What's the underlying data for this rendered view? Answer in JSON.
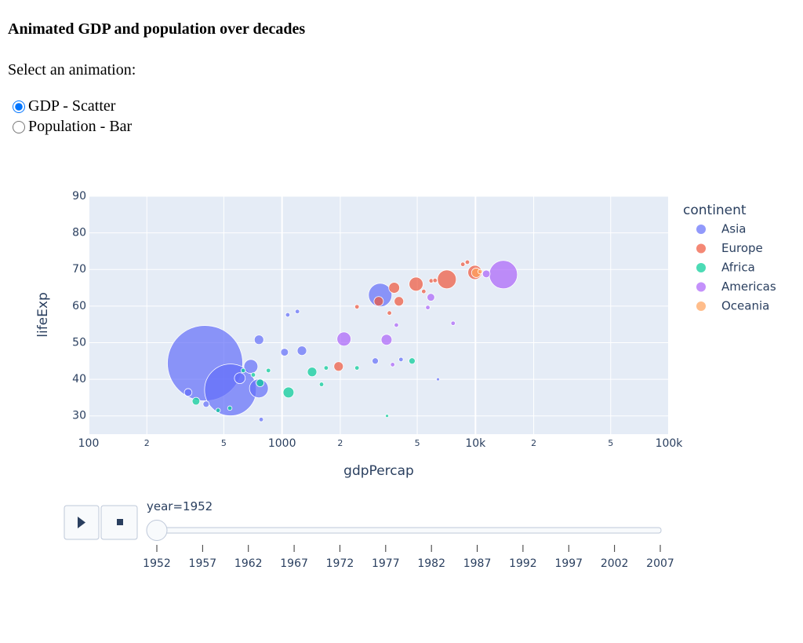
{
  "header": {
    "title": "Animated GDP and population over decades"
  },
  "form": {
    "prompt": "Select an animation:",
    "options": [
      {
        "label": "GDP - Scatter",
        "checked": true
      },
      {
        "label": "Population - Bar",
        "checked": false
      }
    ]
  },
  "chart_data": {
    "type": "scatter",
    "x_label": "gdpPercap",
    "y_label": "lifeExp",
    "xscale": "log",
    "xlim": [
      100,
      100000
    ],
    "ylim": [
      25,
      90
    ],
    "xticks": [
      100,
      {
        "value": 200,
        "label": "2"
      },
      {
        "value": 500,
        "label": "5"
      },
      1000,
      {
        "value": 2000,
        "label": "2"
      },
      {
        "value": 5000,
        "label": "5"
      },
      {
        "value": 10000,
        "label": "10k"
      },
      {
        "value": 20000,
        "label": "2"
      },
      {
        "value": 50000,
        "label": "5"
      },
      {
        "value": 100000,
        "label": "100k"
      }
    ],
    "yticks": [
      30,
      40,
      50,
      60,
      70,
      80,
      90
    ],
    "grid": true,
    "legend_title": "continent",
    "legend_position": "right",
    "series": [
      {
        "name": "Asia",
        "color": "#636efa",
        "x": [
          400,
          541,
          759,
          690,
          605,
          3217,
          760,
          1030,
          1267,
          327,
          405,
          3033,
          1070,
          1200,
          780,
          4120,
          6400
        ],
        "y": [
          44.4,
          37.1,
          37.5,
          43.5,
          40.3,
          63,
          50.8,
          47.4,
          47.8,
          36.4,
          33.2,
          45,
          57.6,
          58.5,
          29,
          45.4,
          40
        ],
        "sizes": [
          576,
          272,
          36,
          20,
          12,
          56,
          9,
          6,
          9,
          6,
          4,
          4,
          2,
          2,
          2,
          2,
          1
        ]
      },
      {
        "name": "Europe",
        "color": "#ef553b",
        "x": [
          7110,
          4930,
          9930,
          4020,
          3800,
          3160,
          1960,
          9080,
          8600,
          5900,
          2440,
          3590,
          5400,
          6180
        ],
        "y": [
          67.3,
          66,
          69.2,
          61.3,
          65,
          61.3,
          43.5,
          72,
          71.4,
          66.9,
          59.8,
          58.1,
          64,
          67
        ],
        "sizes": [
          36,
          20,
          20,
          9,
          12,
          9,
          9,
          2,
          2,
          2,
          2,
          2,
          2,
          2
        ]
      },
      {
        "name": "Africa",
        "color": "#00cc96",
        "x": [
          1080,
          1430,
          359,
          770,
          4700,
          1600,
          1690,
          2440,
          710,
          850,
          467,
          3490,
          630,
          537
        ],
        "y": [
          36.4,
          42,
          34,
          39,
          45,
          38.6,
          43.1,
          43.1,
          41.2,
          42.4,
          31.5,
          30,
          42.4,
          32.1
        ],
        "sizes": [
          12,
          9,
          6,
          6,
          4,
          2,
          2,
          2,
          2,
          2,
          2,
          1,
          2,
          2
        ]
      },
      {
        "name": "Americas",
        "color": "#ab63fa",
        "x": [
          13930,
          2090,
          3470,
          5880,
          11370,
          7660,
          5670,
          3730,
          3900
        ],
        "y": [
          68.6,
          51,
          50.8,
          62.4,
          68.8,
          55.3,
          59.6,
          44,
          54.8
        ],
        "sizes": [
          81,
          20,
          12,
          6,
          6,
          2,
          2,
          2,
          2
        ]
      },
      {
        "name": "Oceania",
        "color": "#ffa15a",
        "x": [
          10090,
          10560
        ],
        "y": [
          69.1,
          69.4
        ],
        "sizes": [
          9,
          2
        ]
      }
    ],
    "slider": {
      "prefix": "year=",
      "active": 0,
      "steps": [
        1952,
        1957,
        1962,
        1967,
        1972,
        1977,
        1982,
        1987,
        1992,
        1997,
        2002,
        2007
      ]
    }
  }
}
